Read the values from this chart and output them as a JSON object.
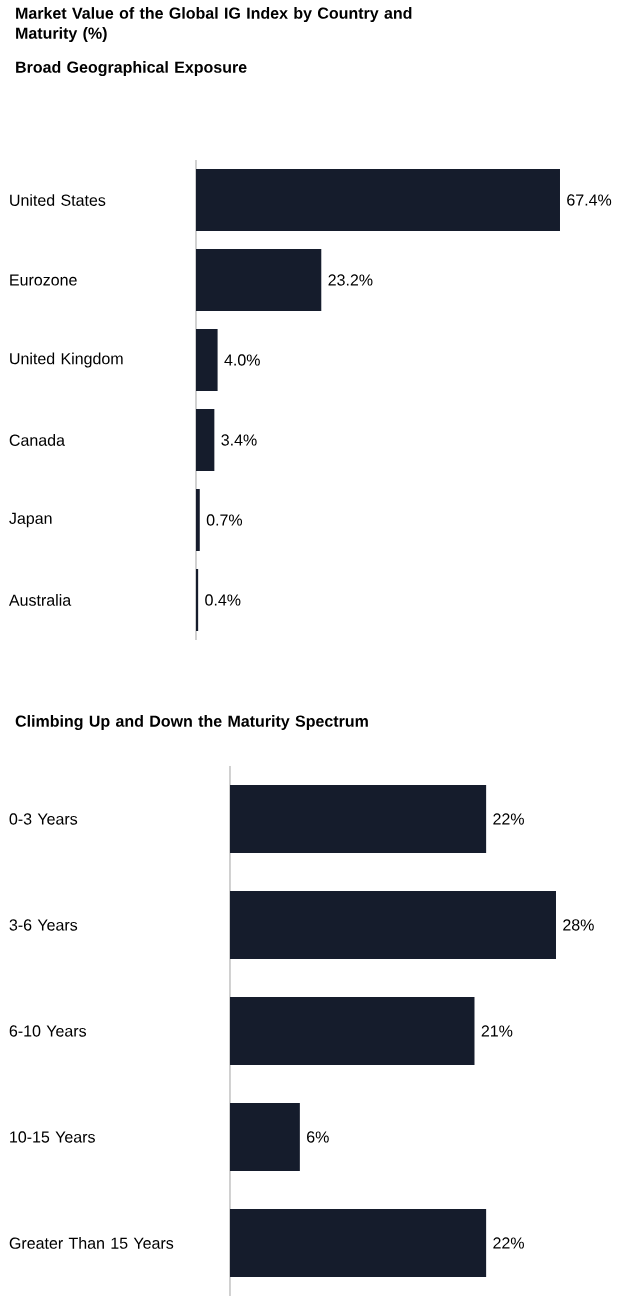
{
  "chart_data": [
    {
      "type": "bar",
      "orientation": "horizontal",
      "title": "Market Value of the Global IG Index by Country and Maturity (%)",
      "subtitle": "Broad Geographical Exposure",
      "categories": [
        "United States",
        "Eurozone",
        "United Kingdom",
        "Canada",
        "Japan",
        "Australia"
      ],
      "values": [
        67.4,
        23.2,
        4.0,
        3.4,
        0.7,
        0.4
      ],
      "value_labels": [
        "67.4%",
        "23.2%",
        "4.0%",
        "3.4%",
        "0.7%",
        "0.4%"
      ],
      "color": "#151c2c",
      "tick_labels": "y"
    },
    {
      "type": "bar",
      "orientation": "horizontal",
      "title": "Climbing Up and Down the Maturity Spectrum",
      "categories": [
        "0-3 Years",
        "3-6 Years",
        "6-10 Years",
        "10-15 Years",
        "Greater Than 15 Years"
      ],
      "values": [
        22,
        28,
        21,
        6,
        22
      ],
      "value_labels": [
        "22%",
        "28%",
        "21%",
        "6%",
        "22%"
      ],
      "color": "#151c2c",
      "tick_labels": "y"
    }
  ]
}
